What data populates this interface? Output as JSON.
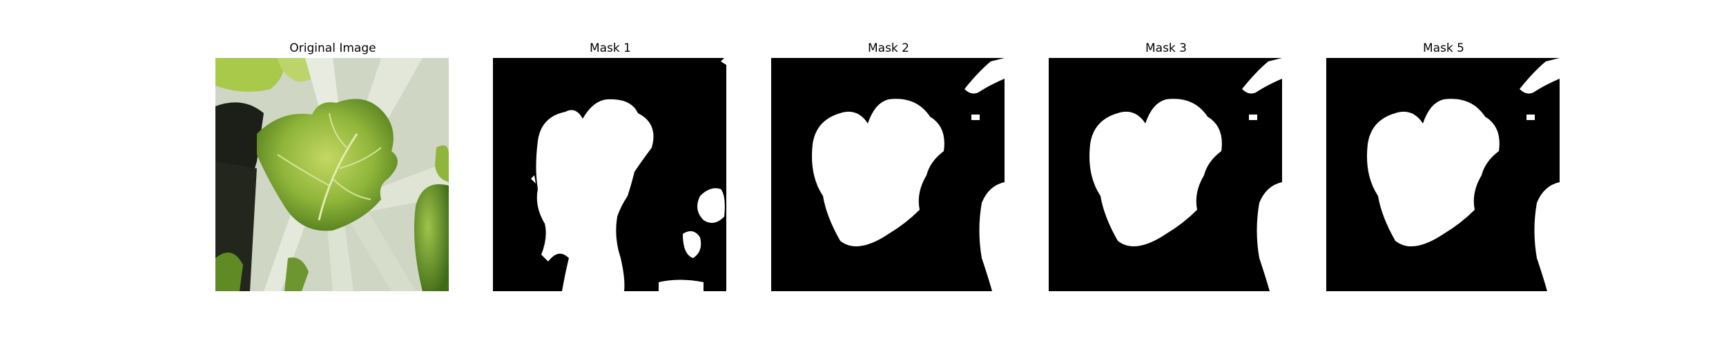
{
  "figure": {
    "panels": [
      {
        "title": "Original Image",
        "kind": "photo"
      },
      {
        "title": "Mask 1",
        "kind": "mask"
      },
      {
        "title": "Mask 2",
        "kind": "mask"
      },
      {
        "title": "Mask 3",
        "kind": "mask"
      },
      {
        "title": "Mask 5",
        "kind": "mask"
      }
    ],
    "colors": {
      "mask_background": "#000000",
      "mask_foreground": "#ffffff",
      "leaf_dark": "#4f7a1c",
      "leaf_light": "#a9c94a",
      "stem": "#d9dfd0",
      "pot": "#1c1e18"
    }
  }
}
